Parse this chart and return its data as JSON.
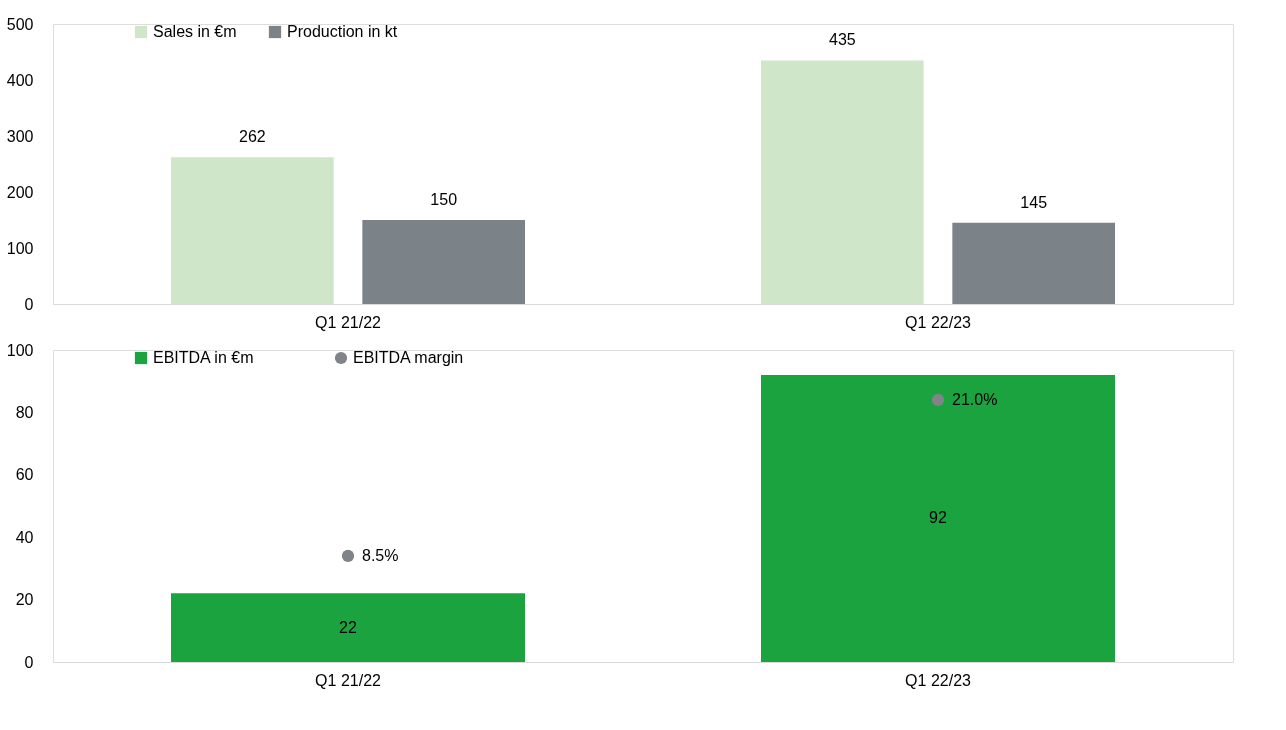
{
  "chart_data": [
    {
      "type": "bar",
      "categories": [
        "Q1 21/22",
        "Q1 22/23"
      ],
      "series": [
        {
          "name": "Sales in €m",
          "color": "#d0e6c9",
          "values": [
            262,
            435
          ]
        },
        {
          "name": "Production in kt",
          "color": "#7b8288",
          "values": [
            150,
            145
          ]
        }
      ],
      "ylim": [
        0,
        500
      ],
      "yticks": [
        0,
        100,
        200,
        300,
        400,
        500
      ],
      "data_labels": true,
      "legend": "top left",
      "grid": false
    },
    {
      "type": "bar",
      "categories": [
        "Q1 21/22",
        "Q1 22/23"
      ],
      "series": [
        {
          "name": "EBITDA in €m",
          "color": "#1ba340",
          "values": [
            22,
            92
          ]
        },
        {
          "name": "EBITDA margin",
          "type": "scatter",
          "axis": "y2",
          "marker": "circle",
          "color": "#808488",
          "values": [
            8.5,
            21.0
          ],
          "value_labels": [
            "8.5%",
            "21.0%"
          ]
        }
      ],
      "ylim": [
        0,
        100
      ],
      "yticks": [
        0,
        20,
        40,
        60,
        80,
        100
      ],
      "y2lim": [
        0,
        25
      ],
      "data_labels": true,
      "legend": "top left",
      "grid": false
    }
  ]
}
